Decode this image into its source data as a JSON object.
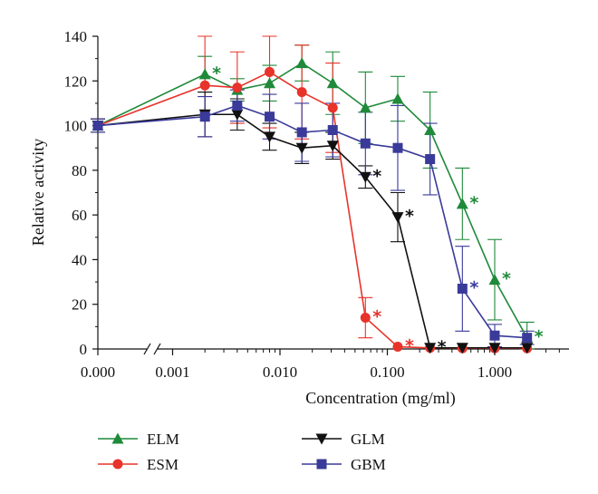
{
  "chart_data": {
    "type": "line",
    "title": "",
    "xlabel": "Concentration (mg/ml)",
    "ylabel": "Relative activity",
    "x_scale": "log (broken axis, control at 0.000)",
    "x_ticks": [
      "0.000",
      "0.001",
      "0.010",
      "0.100",
      "1.000"
    ],
    "y_ticks": [
      "0",
      "20",
      "40",
      "60",
      "80",
      "100",
      "120",
      "140"
    ],
    "ylim": [
      0,
      140
    ],
    "grid": false,
    "legend_position": "bottom",
    "significance_marker": "*",
    "series": [
      {
        "name": "ELM",
        "color": "#1f8a3a",
        "marker": "triangle-up",
        "points": [
          {
            "x": 0,
            "y": 100,
            "err": 3,
            "sig": false
          },
          {
            "x": 0.002,
            "y": 123,
            "err": 8,
            "sig": true
          },
          {
            "x": 0.004,
            "y": 116,
            "err": 5,
            "sig": false
          },
          {
            "x": 0.008,
            "y": 119,
            "err": 8,
            "sig": false
          },
          {
            "x": 0.016,
            "y": 128,
            "err": 8,
            "sig": false
          },
          {
            "x": 0.031,
            "y": 119,
            "err": 14,
            "sig": false
          },
          {
            "x": 0.0625,
            "y": 108,
            "err": 16,
            "sig": false
          },
          {
            "x": 0.125,
            "y": 112,
            "err": 10,
            "sig": false
          },
          {
            "x": 0.25,
            "y": 98,
            "err": 17,
            "sig": false
          },
          {
            "x": 0.5,
            "y": 65,
            "err": 16,
            "sig": true
          },
          {
            "x": 1,
            "y": 31,
            "err": 18,
            "sig": true
          },
          {
            "x": 2,
            "y": 5,
            "err": 7,
            "sig": true
          }
        ]
      },
      {
        "name": "ESM",
        "color": "#e8332a",
        "marker": "circle",
        "points": [
          {
            "x": 0,
            "y": 100,
            "err": 3,
            "sig": false
          },
          {
            "x": 0.002,
            "y": 118,
            "err": 23,
            "sig": false
          },
          {
            "x": 0.004,
            "y": 117,
            "err": 16,
            "sig": false
          },
          {
            "x": 0.008,
            "y": 124,
            "err": 25,
            "sig": false
          },
          {
            "x": 0.016,
            "y": 115,
            "err": 21,
            "sig": false
          },
          {
            "x": 0.031,
            "y": 108,
            "err": 20,
            "sig": false
          },
          {
            "x": 0.0625,
            "y": 14,
            "err": 9,
            "sig": true
          },
          {
            "x": 0.125,
            "y": 1,
            "err": 0,
            "sig": true
          },
          {
            "x": 0.25,
            "y": 0.5,
            "err": 0,
            "sig": false
          },
          {
            "x": 0.5,
            "y": 0.3,
            "err": 0,
            "sig": false
          },
          {
            "x": 1,
            "y": 0.3,
            "err": 0,
            "sig": false
          },
          {
            "x": 2,
            "y": 0.3,
            "err": 0,
            "sig": false
          }
        ]
      },
      {
        "name": "GLM",
        "color": "#111111",
        "marker": "triangle-down",
        "points": [
          {
            "x": 0,
            "y": 100,
            "err": 3,
            "sig": false
          },
          {
            "x": 0.002,
            "y": 105,
            "err": 10,
            "sig": false
          },
          {
            "x": 0.004,
            "y": 105,
            "err": 7,
            "sig": false
          },
          {
            "x": 0.008,
            "y": 95,
            "err": 6,
            "sig": false
          },
          {
            "x": 0.016,
            "y": 90,
            "err": 7,
            "sig": false
          },
          {
            "x": 0.031,
            "y": 91,
            "err": 6,
            "sig": false
          },
          {
            "x": 0.0625,
            "y": 77,
            "err": 5,
            "sig": true
          },
          {
            "x": 0.125,
            "y": 59,
            "err": 11,
            "sig": true
          },
          {
            "x": 0.25,
            "y": 0.5,
            "err": 0,
            "sig": true
          },
          {
            "x": 0.5,
            "y": 0.5,
            "err": 0,
            "sig": false
          },
          {
            "x": 1,
            "y": 0.5,
            "err": 0,
            "sig": false
          },
          {
            "x": 2,
            "y": 0.5,
            "err": 0,
            "sig": false
          }
        ]
      },
      {
        "name": "GBM",
        "color": "#3a3a9a",
        "marker": "square",
        "points": [
          {
            "x": 0,
            "y": 100,
            "err": 3,
            "sig": false
          },
          {
            "x": 0.002,
            "y": 104,
            "err": 9,
            "sig": false
          },
          {
            "x": 0.004,
            "y": 109,
            "err": 7,
            "sig": false
          },
          {
            "x": 0.008,
            "y": 104,
            "err": 10,
            "sig": false
          },
          {
            "x": 0.016,
            "y": 97,
            "err": 13,
            "sig": false
          },
          {
            "x": 0.031,
            "y": 98,
            "err": 12,
            "sig": false
          },
          {
            "x": 0.0625,
            "y": 92,
            "err": 14,
            "sig": false
          },
          {
            "x": 0.125,
            "y": 90,
            "err": 19,
            "sig": false
          },
          {
            "x": 0.25,
            "y": 85,
            "err": 16,
            "sig": false
          },
          {
            "x": 0.5,
            "y": 27,
            "err": 19,
            "sig": true
          },
          {
            "x": 1,
            "y": 6,
            "err": 5,
            "sig": false
          },
          {
            "x": 2,
            "y": 5,
            "err": 3,
            "sig": false
          }
        ]
      }
    ]
  }
}
